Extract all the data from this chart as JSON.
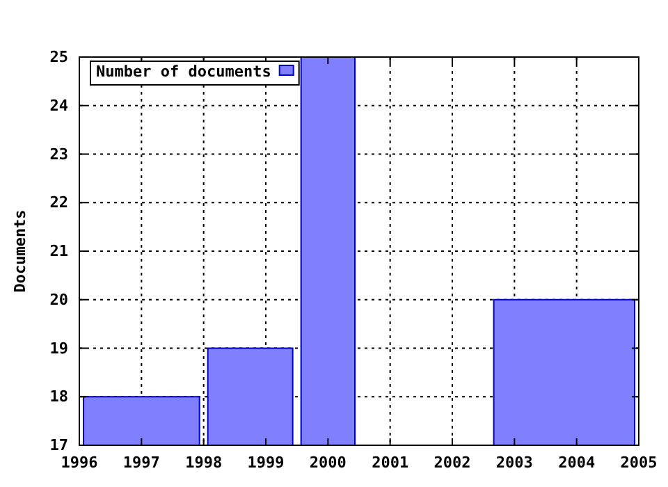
{
  "chart_data": {
    "type": "histogram",
    "ylabel": "Documents",
    "bins": [
      1996,
      1998,
      1999.5,
      2000.5,
      2002.6,
      2005
    ],
    "series": [
      {
        "name": "Number of documents",
        "color": "#8080ff",
        "values": [
          18,
          19,
          25,
          null,
          20
        ]
      }
    ],
    "xlim": [
      1996,
      2005
    ],
    "xticks": [
      1996,
      1997,
      1998,
      1999,
      2000,
      2001,
      2002,
      2003,
      2004,
      2005
    ],
    "ylim": [
      17,
      25
    ],
    "yticks": [
      17,
      18,
      19,
      20,
      21,
      22,
      23,
      24,
      25
    ],
    "grid": true,
    "legend": "top left"
  }
}
